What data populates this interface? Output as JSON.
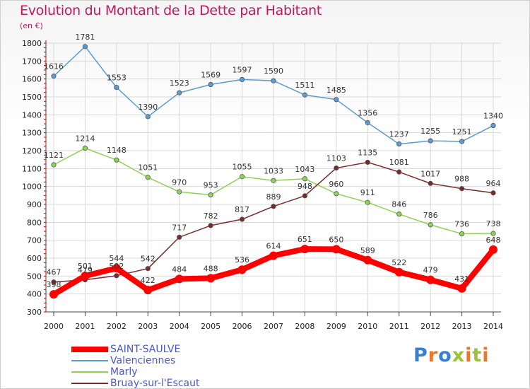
{
  "title": "Evolution du Montant de la Dette par Habitant",
  "subtitle": "(en €)",
  "logo": {
    "text": "Proxiti",
    "colors": [
      "#3b7fd1",
      "#e8782b",
      "#3b7fd1",
      "#9ac53b",
      "#e8782b",
      "#9ac53b",
      "#e8782b"
    ]
  },
  "chart_data": {
    "type": "line",
    "x": [
      "2000",
      "2001",
      "2002",
      "2003",
      "2004",
      "2005",
      "2006",
      "2007",
      "2008",
      "2009",
      "2010",
      "2011",
      "2012",
      "2013",
      "2014"
    ],
    "ylim": [
      300,
      1800
    ],
    "yticks": [
      300,
      400,
      500,
      600,
      700,
      800,
      900,
      1000,
      1100,
      1200,
      1300,
      1400,
      1500,
      1600,
      1700,
      1800
    ],
    "grid": true,
    "legend_position": "bottom-left",
    "series": [
      {
        "name": "Valenciennes",
        "color": "#5b9bd5",
        "values": [
          1616,
          1781,
          1553,
          1390,
          1523,
          1569,
          1597,
          1590,
          1511,
          1485,
          1356,
          1237,
          1255,
          1251,
          1340
        ]
      },
      {
        "name": "Marly",
        "color": "#8ed454",
        "values": [
          1121,
          1214,
          1148,
          1051,
          970,
          953,
          1055,
          1033,
          1043,
          960,
          911,
          846,
          786,
          736,
          738
        ]
      },
      {
        "name": "Bruay-sur-l'Escaut",
        "color": "#7a2a2a",
        "values": [
          467,
          479,
          502,
          542,
          717,
          782,
          817,
          889,
          948,
          1103,
          1135,
          1081,
          1017,
          988,
          964
        ]
      },
      {
        "name": "SAINT-SAULVE",
        "color": "#ff0000",
        "values": [
          398,
          501,
          544,
          422,
          484,
          488,
          536,
          614,
          651,
          650,
          589,
          522,
          479,
          431,
          648
        ]
      }
    ]
  },
  "legend": [
    {
      "name": "SAINT-SAULVE",
      "color": "#ff0000",
      "thickness": 8
    },
    {
      "name": "Valenciennes",
      "color": "#5b9bd5",
      "thickness": 2
    },
    {
      "name": "Marly",
      "color": "#8ed454",
      "thickness": 2
    },
    {
      "name": "Bruay-sur-l'Escaut",
      "color": "#7a2a2a",
      "thickness": 2
    }
  ]
}
